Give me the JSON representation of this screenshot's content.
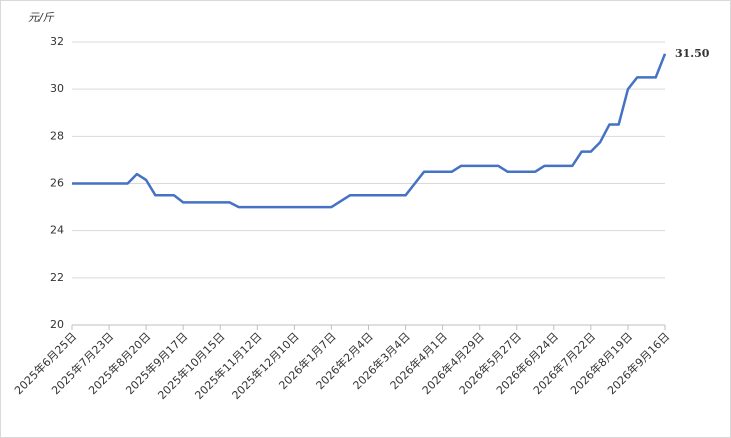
{
  "chart_data": {
    "type": "line",
    "y_label": "元/斤",
    "categories": [
      "2025年6月25日",
      null,
      null,
      null,
      "2025年7月23日",
      null,
      null,
      null,
      "2025年8月20日",
      null,
      null,
      null,
      "2025年9月17日",
      null,
      null,
      null,
      "2025年10月15日",
      null,
      null,
      null,
      "2025年11月12日",
      null,
      null,
      null,
      "2025年12月10日",
      null,
      null,
      null,
      "2026年1月7日",
      null,
      null,
      null,
      "2026年2月4日",
      null,
      null,
      null,
      "2026年3月4日",
      null,
      null,
      null,
      "2026年4月1日",
      null,
      null,
      null,
      "2026年4月29日",
      null,
      null,
      null,
      "2026年5月27日",
      null,
      null,
      null,
      "2026年6月24日",
      null,
      null,
      null,
      "2026年7月22日",
      null,
      null,
      null,
      "2026年8月19日",
      null,
      null,
      null,
      "2026年9月16日"
    ],
    "series": [
      {
        "color": "#4472c4",
        "values": [
          26,
          26,
          26,
          26,
          26,
          26,
          26,
          26.4,
          26.15,
          25.5,
          25.5,
          25.5,
          25.2,
          25.2,
          25.2,
          25.2,
          25.2,
          25.2,
          25,
          25,
          25,
          25,
          25,
          25,
          25,
          25,
          25,
          25,
          25,
          25.25,
          25.5,
          25.5,
          25.5,
          25.5,
          25.5,
          25.5,
          25.5,
          26,
          26.5,
          26.5,
          26.5,
          26.5,
          26.75,
          26.75,
          26.75,
          26.75,
          26.75,
          26.5,
          26.5,
          26.5,
          26.5,
          26.75,
          26.75,
          26.75,
          26.75,
          27.35,
          27.35,
          27.75,
          28.5,
          28.5,
          30,
          30.5,
          30.5,
          30.5,
          31.5
        ],
        "value_labels": [
          null,
          null,
          null,
          null,
          null,
          null,
          null,
          null,
          null,
          null,
          null,
          null,
          null,
          null,
          null,
          null,
          null,
          null,
          null,
          null,
          null,
          null,
          null,
          null,
          null,
          null,
          null,
          null,
          null,
          null,
          null,
          null,
          null,
          null,
          null,
          null,
          null,
          null,
          null,
          null,
          null,
          null,
          null,
          null,
          null,
          null,
          null,
          null,
          null,
          null,
          null,
          null,
          null,
          null,
          null,
          null,
          null,
          null,
          null,
          null,
          null,
          null,
          null,
          null,
          "31.50"
        ]
      }
    ],
    "ylim": [
      20,
      32
    ],
    "yticks": [
      20,
      22,
      24,
      26,
      28,
      30,
      32
    ],
    "grid": true
  }
}
